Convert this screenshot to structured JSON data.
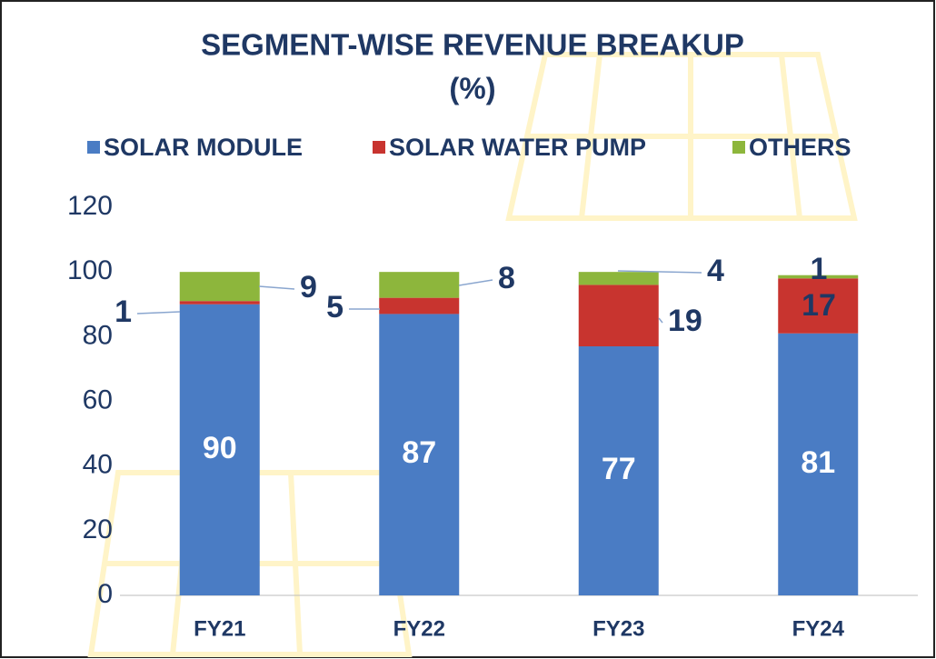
{
  "chart_data": {
    "type": "stacked_bar",
    "title": "SEGMENT-WISE REVENUE BREAKUP",
    "subtitle": "(%)",
    "categories": [
      "FY21",
      "FY22",
      "FY23",
      "FY24"
    ],
    "series": [
      {
        "name": "SOLAR MODULE",
        "color": "#4a7cc4",
        "values": [
          90,
          87,
          77,
          81
        ]
      },
      {
        "name": "SOLAR WATER PUMP",
        "color": "#c8342f",
        "values": [
          1,
          5,
          19,
          17
        ]
      },
      {
        "name": "OTHERS",
        "color": "#8db63c",
        "values": [
          9,
          8,
          4,
          1
        ]
      }
    ],
    "ylim": [
      0,
      120
    ],
    "yticks": [
      0,
      20,
      40,
      60,
      80,
      100,
      120
    ],
    "grid": false,
    "legend": "top"
  }
}
